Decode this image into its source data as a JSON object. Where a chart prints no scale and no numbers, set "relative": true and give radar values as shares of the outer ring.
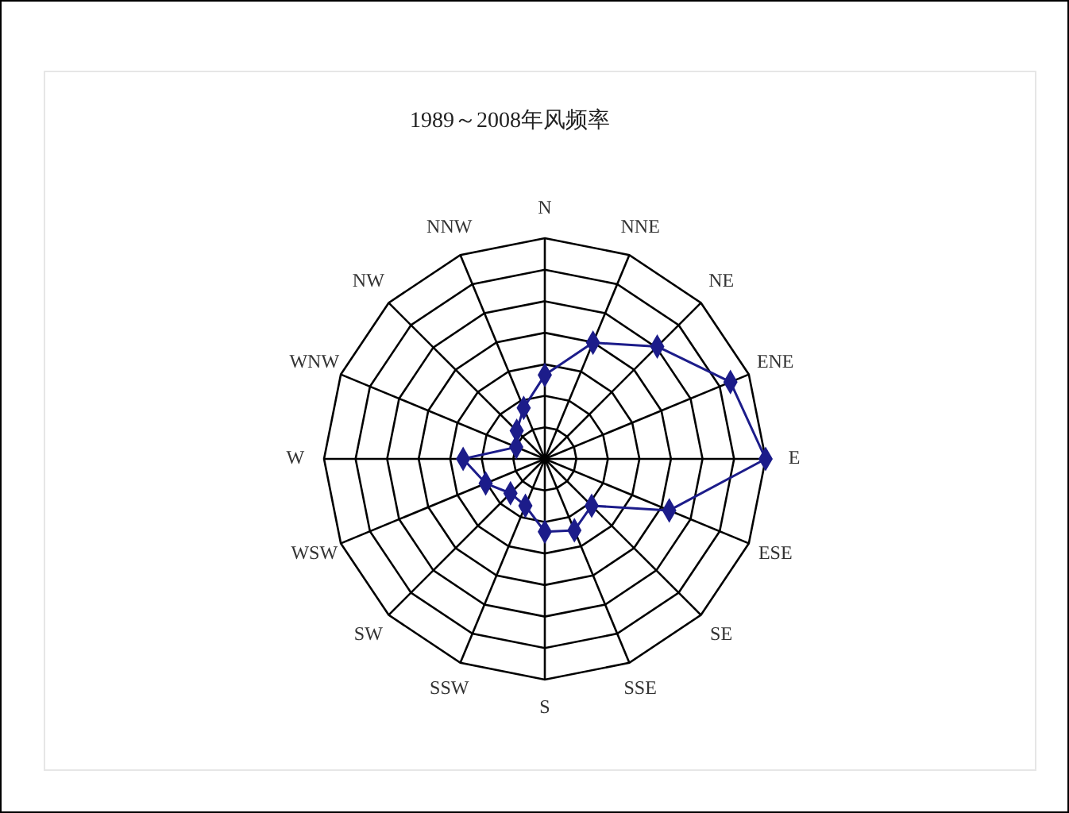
{
  "chart_data": {
    "type": "radar",
    "title": "1989～2008年风频率",
    "relative": true,
    "grid": true,
    "marker": "diamond",
    "categories": [
      "N",
      "NNE",
      "NE",
      "ENE",
      "E",
      "ESE",
      "SE",
      "SSE",
      "S",
      "SSW",
      "SW",
      "WSW",
      "W",
      "WNW",
      "NW",
      "NNW"
    ],
    "series": [
      {
        "color": "#1c1c8a",
        "values": [
          0.38,
          0.57,
          0.72,
          0.91,
          1.0,
          0.61,
          0.3,
          0.35,
          0.33,
          0.23,
          0.22,
          0.29,
          0.37,
          0.14,
          0.18,
          0.25
        ]
      }
    ]
  }
}
